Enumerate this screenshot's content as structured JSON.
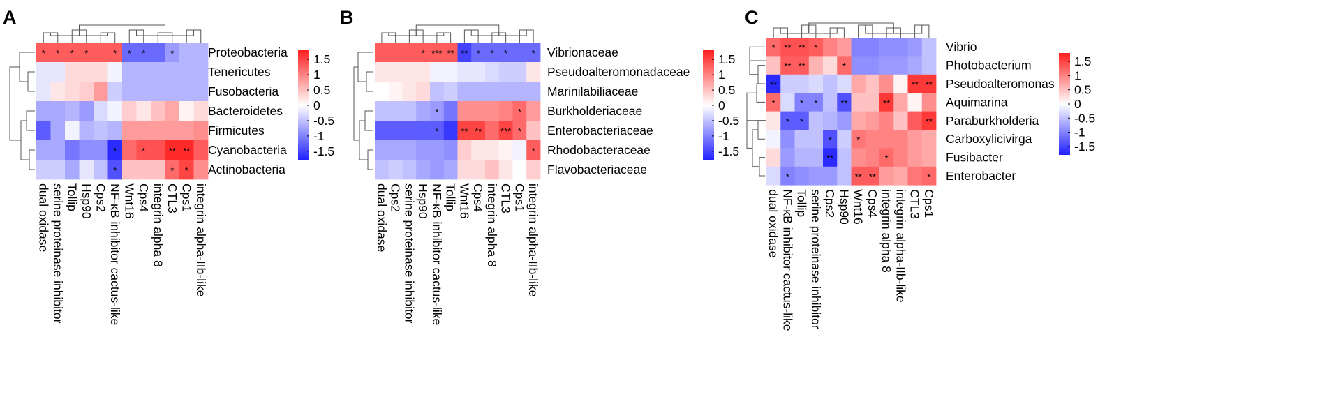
{
  "colors": {
    "low": "#1f1fff",
    "mid": "#ffffff",
    "high": "#ff1f1f"
  },
  "chart_data": [
    {
      "type": "heatmap",
      "panel": "A",
      "rows": [
        "Proteobacteria",
        "Tenericutes",
        "Fusobacteria",
        "Bacteroidetes",
        "Firmicutes",
        "Cyanobacteria",
        "Actinobacteria"
      ],
      "columns": [
        "dual oxidase",
        "serine proteinase inhibitor",
        "Tollip",
        "Hsp90",
        "Cps2",
        "NF-κB inhibitor cactus-like",
        "Wnt16",
        "Cps4",
        "integrin alpha 8",
        "CTL3",
        "Cps1",
        "integrin alpha-IIb-like"
      ],
      "values": [
        [
          1.3,
          1.3,
          1.3,
          1.3,
          1.3,
          1.3,
          -1.2,
          -1.2,
          -1.2,
          -0.8,
          -0.6,
          -0.6
        ],
        [
          -0.2,
          -0.2,
          0.3,
          0.3,
          0.3,
          -0.1,
          -0.6,
          -0.6,
          -0.6,
          -0.6,
          -0.6,
          -0.6
        ],
        [
          -0.2,
          0.2,
          0.3,
          0.4,
          0.8,
          -0.4,
          -0.6,
          -0.6,
          -0.6,
          -0.6,
          -0.6,
          -0.6
        ],
        [
          -0.7,
          -0.7,
          -0.6,
          -0.8,
          -0.3,
          -0.1,
          0.4,
          0.2,
          0.5,
          0.7,
          0.1,
          0.3
        ],
        [
          -1.3,
          -0.7,
          -0.1,
          -0.6,
          -0.5,
          -0.6,
          0.8,
          0.8,
          0.8,
          0.8,
          0.8,
          0.9
        ],
        [
          -0.7,
          -0.7,
          -1.1,
          -0.9,
          -0.9,
          -1.7,
          1.2,
          1.4,
          1.4,
          1.7,
          1.7,
          1.3
        ],
        [
          -0.4,
          -0.4,
          -0.7,
          -0.2,
          -0.5,
          -1.4,
          0.5,
          0.5,
          0.5,
          1.2,
          1.5,
          0.9
        ]
      ],
      "stars": [
        [
          "*",
          "*",
          "*",
          "*",
          "",
          "*",
          "*",
          "*",
          "",
          "*",
          "",
          ""
        ],
        [
          "",
          "",
          "",
          "",
          "",
          "",
          "",
          "",
          "",
          "",
          "",
          ""
        ],
        [
          "",
          "",
          "",
          "",
          "",
          "",
          "",
          "",
          "",
          "",
          "",
          ""
        ],
        [
          "",
          "",
          "",
          "",
          "",
          "",
          "",
          "",
          "",
          "",
          "",
          ""
        ],
        [
          "",
          "",
          "",
          "",
          "",
          "",
          "",
          "",
          "",
          "",
          "",
          ""
        ],
        [
          "",
          "",
          "",
          "",
          "",
          "*",
          "",
          "*",
          "",
          "**",
          "**",
          ""
        ],
        [
          "",
          "",
          "",
          "",
          "",
          "*",
          "",
          "",
          "",
          "*",
          "*",
          ""
        ]
      ],
      "legend": {
        "ticks": [
          "1.5",
          "1",
          "0.5",
          "0",
          "-0.5",
          "-1",
          "-1.5"
        ],
        "range": [
          -1.8,
          1.8
        ]
      }
    },
    {
      "type": "heatmap",
      "panel": "B",
      "rows": [
        "Vibrionaceae",
        "Pseudoalteromonadaceae",
        "Marinilabiliaceae",
        "Burkholderiaceae",
        "Enterobacteriaceae",
        "Rhodobacteraceae",
        "Flavobacteriaceae"
      ],
      "columns": [
        "dual oxidase",
        "Cps2",
        "serine proteinase inhibitor",
        "Hsp90",
        "NF-κB inhibitor cactus-like",
        "Tollip",
        "Wnt16",
        "Cps4",
        "integrin alpha 8",
        "CTL3",
        "Cps1",
        "integrin alpha-IIb-like"
      ],
      "values": [
        [
          1.3,
          1.3,
          1.3,
          1.3,
          1.3,
          1.3,
          -1.5,
          -1.2,
          -1.2,
          -1.2,
          -1.2,
          -1.2
        ],
        [
          0.2,
          0.2,
          0.2,
          0.2,
          -0.1,
          -0.1,
          -0.2,
          -0.2,
          -0.3,
          -0.4,
          -0.4,
          0.2
        ],
        [
          0.0,
          0.1,
          0.2,
          0.3,
          -0.5,
          -0.4,
          -0.6,
          -0.6,
          -0.6,
          -0.6,
          -0.6,
          -0.6
        ],
        [
          -0.5,
          -0.5,
          -0.5,
          -0.7,
          -0.8,
          -1.1,
          0.9,
          0.9,
          0.9,
          1.0,
          1.2,
          0.8
        ],
        [
          -1.3,
          -1.3,
          -1.3,
          -1.3,
          -1.3,
          -1.6,
          1.5,
          1.5,
          1.2,
          1.5,
          1.2,
          0.5
        ],
        [
          -0.7,
          -0.7,
          -0.7,
          -0.8,
          -0.8,
          -0.9,
          0.4,
          0.2,
          0.2,
          0.1,
          -0.1,
          1.3
        ],
        [
          -0.5,
          -0.4,
          -0.5,
          -0.7,
          -0.8,
          -0.7,
          0.3,
          0.3,
          0.5,
          0.2,
          0.0,
          0.4
        ]
      ],
      "stars": [
        [
          "",
          "",
          "",
          "*",
          "***",
          "**",
          "**",
          "*",
          "*",
          "*",
          "",
          "*"
        ],
        [
          "",
          "",
          "",
          "",
          "",
          "",
          "",
          "",
          "",
          "",
          "",
          ""
        ],
        [
          "",
          "",
          "",
          "",
          "",
          "",
          "",
          "",
          "",
          "",
          "",
          ""
        ],
        [
          "",
          "",
          "",
          "",
          "*",
          "",
          "",
          "",
          "",
          "",
          "*",
          ""
        ],
        [
          "",
          "",
          "",
          "",
          "*",
          "",
          "**",
          "**",
          "",
          "***",
          "*",
          ""
        ],
        [
          "",
          "",
          "",
          "",
          "",
          "",
          "",
          "",
          "",
          "",
          "",
          "*"
        ],
        [
          "",
          "",
          "",
          "",
          "",
          "",
          "",
          "",
          "",
          "",
          "",
          ""
        ]
      ],
      "legend": {
        "ticks": [
          "1.5",
          "1",
          "0.5",
          "0",
          "-0.5",
          "-1",
          "-1.5"
        ],
        "range": [
          -1.8,
          1.8
        ]
      }
    },
    {
      "type": "heatmap",
      "panel": "C",
      "rows": [
        "Vibrio",
        "Photobacterium",
        "Pseudoalteromonas",
        "Aquimarina",
        "Paraburkholderia",
        "Carboxylicivirga",
        "Fusibacter",
        "Enterobacter"
      ],
      "columns": [
        "dual oxidase",
        "NF-κB inhibitor cactus-like",
        "Tollip",
        "serine proteinase inhibitor",
        "Cps2",
        "Hsp90",
        "Wnt16",
        "Cps4",
        "integrin alpha 8",
        "integrin alpha-IIb-like",
        "CTL3",
        "Cps1"
      ],
      "values": [
        [
          1.2,
          1.4,
          1.4,
          1.3,
          1.0,
          0.8,
          -1.0,
          -1.0,
          -0.9,
          -0.9,
          -0.8,
          -0.5
        ],
        [
          0.5,
          1.3,
          1.3,
          0.6,
          0.3,
          1.2,
          -0.9,
          -0.9,
          -0.8,
          -0.8,
          -0.7,
          -0.5
        ],
        [
          -1.7,
          -0.4,
          -0.4,
          -0.3,
          -0.5,
          -0.3,
          0.7,
          0.5,
          0.9,
          0.1,
          1.6,
          1.6
        ],
        [
          1.2,
          -0.3,
          -1.0,
          -1.0,
          -0.5,
          -1.4,
          0.5,
          0.5,
          1.6,
          0.7,
          0.1,
          0.9
        ],
        [
          0.2,
          -1.3,
          -1.3,
          -0.5,
          -0.6,
          -0.8,
          0.7,
          0.8,
          1.0,
          0.5,
          1.3,
          1.6
        ],
        [
          -0.1,
          -0.9,
          -0.5,
          -0.5,
          -1.4,
          -0.4,
          1.1,
          1.0,
          1.0,
          1.0,
          0.8,
          0.7
        ],
        [
          0.3,
          -0.8,
          -0.6,
          -0.6,
          -1.7,
          -0.5,
          0.9,
          1.0,
          1.2,
          1.0,
          0.8,
          0.7
        ],
        [
          -0.3,
          -1.0,
          -0.9,
          -0.8,
          -0.8,
          -0.5,
          1.3,
          1.3,
          0.8,
          0.7,
          1.1,
          1.2
        ]
      ],
      "stars": [
        [
          "*",
          "**",
          "**",
          "*",
          "",
          "",
          "",
          "",
          "",
          "",
          "",
          ""
        ],
        [
          "",
          "**",
          "**",
          "",
          "",
          "*",
          "",
          "",
          "",
          "",
          "",
          ""
        ],
        [
          "**",
          "",
          "",
          "",
          "",
          "",
          "",
          "",
          "",
          "",
          "**",
          "**"
        ],
        [
          "*",
          "",
          "*",
          "*",
          "",
          "**",
          "",
          "",
          "**",
          "",
          "",
          ""
        ],
        [
          "",
          "*",
          "*",
          "",
          "",
          "",
          "",
          "",
          "",
          "",
          "",
          "**"
        ],
        [
          "",
          "",
          "",
          "",
          "*",
          "",
          "*",
          "",
          "",
          "",
          "",
          ""
        ],
        [
          "",
          "",
          "",
          "",
          "**",
          "",
          "",
          "",
          "*",
          "",
          "",
          ""
        ],
        [
          "",
          "*",
          "",
          "",
          "",
          "",
          "**",
          "**",
          "",
          "",
          "",
          "*"
        ]
      ],
      "legend": {
        "ticks": [
          "1.5",
          "1",
          "0.5",
          "0",
          "-0.5",
          "-1",
          "-1.5"
        ],
        "range": [
          -1.8,
          1.8
        ]
      }
    }
  ]
}
